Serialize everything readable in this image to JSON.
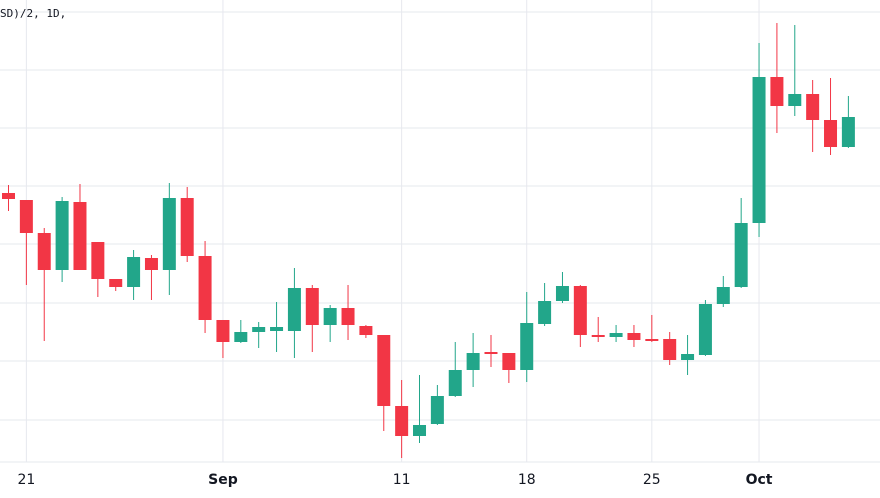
{
  "chart_data": {
    "type": "candlestick",
    "title": "SD)/2, 1D,",
    "categories": [
      null,
      "21",
      null,
      null,
      null,
      null,
      null,
      null,
      null,
      null,
      null,
      null,
      "Sep",
      null,
      null,
      null,
      null,
      null,
      null,
      null,
      null,
      null,
      "11",
      null,
      null,
      null,
      null,
      null,
      null,
      "18",
      null,
      null,
      null,
      null,
      null,
      null,
      "25",
      null,
      null,
      null,
      null,
      null,
      "Oct",
      null,
      null,
      null,
      null,
      null
    ],
    "open": [
      287,
      280,
      247,
      210,
      278,
      238,
      201,
      193,
      222,
      210,
      282,
      224,
      160,
      138,
      148,
      149,
      149,
      192,
      155,
      172,
      154,
      145,
      74,
      44,
      56,
      84,
      110,
      128,
      127,
      110,
      156,
      179,
      194,
      145,
      143,
      147,
      141,
      141,
      120,
      125,
      176,
      193,
      257,
      403,
      374,
      386,
      360,
      333
    ],
    "high": [
      295,
      280,
      252,
      283,
      296,
      238,
      201,
      230,
      225,
      297,
      293,
      239,
      160,
      160,
      158,
      178,
      212,
      195,
      175,
      195,
      155,
      145,
      100,
      105,
      95,
      138,
      147,
      145,
      127,
      188,
      197,
      208,
      195,
      163,
      155,
      155,
      165,
      148,
      145,
      180,
      204,
      282,
      437,
      457,
      455,
      400,
      402,
      384
    ],
    "low": [
      269,
      195,
      139,
      198,
      210,
      183,
      189,
      180,
      180,
      185,
      218,
      147,
      122,
      137,
      132,
      128,
      122,
      128,
      138,
      140,
      142,
      49,
      22,
      37,
      55,
      83,
      93,
      113,
      97,
      98,
      154,
      177,
      133,
      138,
      138,
      133,
      138,
      115,
      105,
      124,
      173,
      192,
      243,
      347,
      364,
      328,
      325,
      332
    ],
    "close": [
      281,
      247,
      210,
      279,
      210,
      201,
      193,
      223,
      210,
      282,
      224,
      160,
      138,
      148,
      153,
      153,
      192,
      155,
      172,
      155,
      145,
      74,
      44,
      55,
      84,
      110,
      127,
      126,
      110,
      157,
      179,
      194,
      145,
      143,
      147,
      140,
      139,
      120,
      126,
      176,
      193,
      257,
      403,
      374,
      386,
      360,
      333,
      363
    ],
    "up_color": "#22a68a",
    "down_color": "#f23645",
    "ylim": [
      18,
      480
    ]
  }
}
